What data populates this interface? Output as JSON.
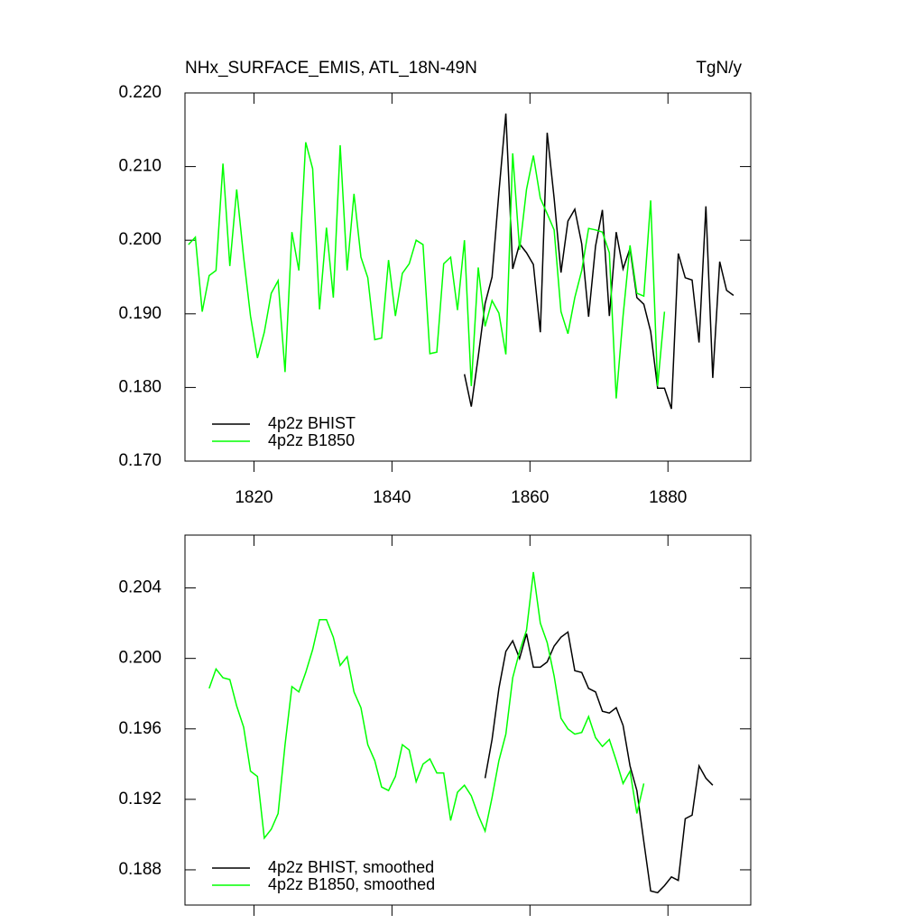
{
  "chart_data": [
    {
      "type": "line",
      "title": "NHx_SURFACE_EMIS, ATL_18N-49N",
      "units": "TgN/y",
      "x": [
        1810.5,
        1811.5,
        1812.5,
        1813.5,
        1814.5,
        1815.5,
        1816.5,
        1817.5,
        1818.5,
        1819.5,
        1820.5,
        1821.5,
        1822.5,
        1823.5,
        1824.5,
        1825.5,
        1826.5,
        1827.5,
        1828.5,
        1829.5,
        1830.5,
        1831.5,
        1832.5,
        1833.5,
        1834.5,
        1835.5,
        1836.5,
        1837.5,
        1838.5,
        1839.5,
        1840.5,
        1841.5,
        1842.5,
        1843.5,
        1844.5,
        1845.5,
        1846.5,
        1847.5,
        1848.5,
        1849.5,
        1850.5,
        1851.5,
        1852.5,
        1853.5,
        1854.5,
        1855.5,
        1856.5,
        1857.5,
        1858.5,
        1859.5,
        1860.5,
        1861.5,
        1862.5,
        1863.5,
        1864.5,
        1865.5,
        1866.5,
        1867.5,
        1868.5,
        1869.5,
        1870.5,
        1871.5,
        1872.5,
        1873.5,
        1874.5,
        1875.5,
        1876.5,
        1877.5,
        1878.5,
        1879.5,
        1880.5,
        1881.5,
        1882.5,
        1883.5,
        1884.5,
        1885.5,
        1886.5,
        1887.5,
        1888.5,
        1889.5
      ],
      "series": [
        {
          "name": "4p2z BHIST",
          "color": "#000000",
          "values": [
            null,
            null,
            null,
            null,
            null,
            null,
            null,
            null,
            null,
            null,
            null,
            null,
            null,
            null,
            null,
            null,
            null,
            null,
            null,
            null,
            null,
            null,
            null,
            null,
            null,
            null,
            null,
            null,
            null,
            null,
            null,
            null,
            null,
            null,
            null,
            null,
            null,
            null,
            null,
            null,
            0.1818,
            0.1774,
            0.1842,
            0.1914,
            0.195,
            0.2065,
            0.2172,
            0.1961,
            0.1995,
            0.1983,
            0.1967,
            0.1875,
            0.2146,
            0.2057,
            0.1956,
            0.2026,
            0.2042,
            0.1995,
            0.1896,
            0.1992,
            0.2041,
            0.1897,
            0.2011,
            0.1961,
            0.1989,
            0.1922,
            0.1913,
            0.1876,
            0.1799,
            0.1799,
            0.1771,
            0.1982,
            0.1949,
            0.1946,
            0.1861,
            0.2046,
            0.1813,
            0.1971,
            0.1932,
            0.1925
          ]
        },
        {
          "name": "4p2z B1850",
          "color": "#00ff00",
          "values": [
            0.1994,
            0.2004,
            0.1903,
            0.1952,
            0.1959,
            0.2104,
            0.1965,
            0.2069,
            0.1977,
            0.1897,
            0.184,
            0.1875,
            0.1928,
            0.1945,
            0.1821,
            0.2011,
            0.1959,
            0.2133,
            0.2097,
            0.1906,
            0.2017,
            0.1922,
            0.2129,
            0.1959,
            0.2063,
            0.1977,
            0.1949,
            0.1865,
            0.1867,
            0.1973,
            0.1897,
            0.1955,
            0.1968,
            0.2,
            0.1994,
            0.1846,
            0.1848,
            0.1968,
            0.1977,
            0.1905,
            0.2,
            0.1802,
            0.1963,
            0.1883,
            0.1918,
            0.1901,
            0.1845,
            0.2118,
            0.1987,
            0.2069,
            0.2115,
            0.2057,
            0.2036,
            0.2014,
            0.1903,
            0.1873,
            0.1922,
            0.1959,
            0.2016,
            0.2014,
            0.2011,
            0.1983,
            0.1785,
            0.1897,
            0.1993,
            0.1928,
            0.1924,
            0.2054,
            0.1802,
            0.1903,
            null,
            null,
            null,
            null,
            null,
            null,
            null,
            null,
            null,
            null
          ]
        }
      ],
      "xlim": [
        1810,
        1892
      ],
      "xticks": [
        1820,
        1840,
        1860,
        1880
      ],
      "show_xtick_labels": true,
      "ylim": [
        0.17,
        0.22
      ],
      "yticks": [
        {
          "value": 0.17,
          "label": "0.170"
        },
        {
          "value": 0.18,
          "label": "0.180"
        },
        {
          "value": 0.19,
          "label": "0.190"
        },
        {
          "value": 0.2,
          "label": "0.200"
        },
        {
          "value": 0.21,
          "label": "0.210"
        },
        {
          "value": 0.22,
          "label": "0.220"
        }
      ],
      "legend": "lower left"
    },
    {
      "type": "line",
      "x": [
        1810.5,
        1811.5,
        1812.5,
        1813.5,
        1814.5,
        1815.5,
        1816.5,
        1817.5,
        1818.5,
        1819.5,
        1820.5,
        1821.5,
        1822.5,
        1823.5,
        1824.5,
        1825.5,
        1826.5,
        1827.5,
        1828.5,
        1829.5,
        1830.5,
        1831.5,
        1832.5,
        1833.5,
        1834.5,
        1835.5,
        1836.5,
        1837.5,
        1838.5,
        1839.5,
        1840.5,
        1841.5,
        1842.5,
        1843.5,
        1844.5,
        1845.5,
        1846.5,
        1847.5,
        1848.5,
        1849.5,
        1850.5,
        1851.5,
        1852.5,
        1853.5,
        1854.5,
        1855.5,
        1856.5,
        1857.5,
        1858.5,
        1859.5,
        1860.5,
        1861.5,
        1862.5,
        1863.5,
        1864.5,
        1865.5,
        1866.5,
        1867.5,
        1868.5,
        1869.5,
        1870.5,
        1871.5,
        1872.5,
        1873.5,
        1874.5,
        1875.5,
        1876.5,
        1877.5,
        1878.5,
        1879.5,
        1880.5,
        1881.5,
        1882.5,
        1883.5,
        1884.5,
        1885.5,
        1886.5,
        1887.5,
        1888.5,
        1889.5
      ],
      "series": [
        {
          "name": "4p2z BHIST, smoothed",
          "color": "#000000",
          "values": [
            null,
            null,
            null,
            null,
            null,
            null,
            null,
            null,
            null,
            null,
            null,
            null,
            null,
            null,
            null,
            null,
            null,
            null,
            null,
            null,
            null,
            null,
            null,
            null,
            null,
            null,
            null,
            null,
            null,
            null,
            null,
            null,
            null,
            null,
            null,
            null,
            null,
            null,
            null,
            null,
            null,
            null,
            null,
            0.1932,
            0.1954,
            0.1983,
            0.2004,
            0.201,
            0.2,
            0.2014,
            0.1995,
            0.1995,
            0.1998,
            0.2007,
            0.2012,
            0.2015,
            0.1993,
            0.1992,
            0.1983,
            0.1981,
            0.197,
            0.1969,
            0.1972,
            0.1962,
            0.1939,
            0.1925,
            0.1896,
            0.1868,
            0.1867,
            0.1871,
            0.1876,
            0.1874,
            0.1909,
            0.1911,
            0.1939,
            0.1932,
            0.1928,
            null,
            null,
            null
          ]
        },
        {
          "name": "4p2z B1850, smoothed",
          "color": "#00ff00",
          "values": [
            null,
            null,
            null,
            0.1983,
            0.1994,
            0.1989,
            0.1988,
            0.1973,
            0.1961,
            0.1936,
            0.1933,
            0.1898,
            0.1903,
            0.1912,
            0.1951,
            0.1984,
            0.1981,
            0.1992,
            0.2005,
            0.2022,
            0.2022,
            0.2012,
            0.1996,
            0.2001,
            0.1981,
            0.1972,
            0.1951,
            0.1942,
            0.1927,
            0.1925,
            0.1933,
            0.1951,
            0.1948,
            0.193,
            0.194,
            0.1943,
            0.1935,
            0.1935,
            0.1908,
            0.1924,
            0.1928,
            0.1922,
            0.1911,
            0.1902,
            0.1921,
            0.1942,
            0.1957,
            0.1989,
            0.2004,
            0.2016,
            0.2049,
            0.202,
            0.2009,
            0.199,
            0.1966,
            0.196,
            0.1957,
            0.1958,
            0.1967,
            0.1955,
            0.195,
            0.1954,
            0.1942,
            0.1929,
            0.1936,
            0.1912,
            0.1929,
            null,
            null,
            null,
            null,
            null,
            null,
            null,
            null,
            null,
            null,
            null,
            null,
            null
          ]
        }
      ],
      "xlim": [
        1810,
        1892
      ],
      "xticks": [
        1820,
        1840,
        1860,
        1880
      ],
      "show_xtick_labels": false,
      "ylim": [
        0.186,
        0.207
      ],
      "yticks": [
        {
          "value": 0.188,
          "label": "0.188"
        },
        {
          "value": 0.192,
          "label": "0.192"
        },
        {
          "value": 0.196,
          "label": "0.196"
        },
        {
          "value": 0.2,
          "label": "0.200"
        },
        {
          "value": 0.204,
          "label": "0.204"
        }
      ],
      "legend": "lower left"
    }
  ]
}
